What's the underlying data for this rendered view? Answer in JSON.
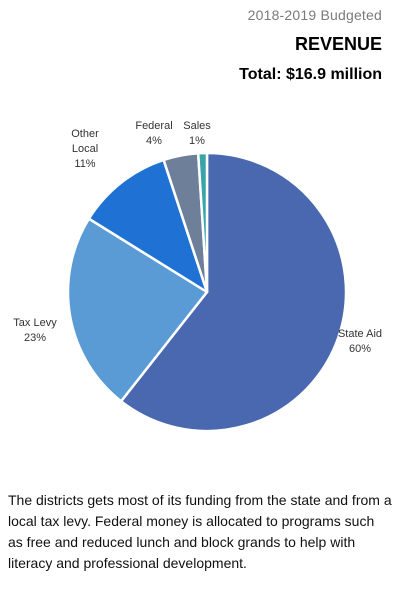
{
  "header": {
    "subtitle": "2018-2019 Budgeted",
    "title": "REVENUE",
    "total": "Total: $16.9 million"
  },
  "chart_data": {
    "type": "pie",
    "title": "REVENUE",
    "subtitle": "2018-2019 Budgeted",
    "slices": [
      {
        "name": "State Aid",
        "value": 60,
        "label_lines": [
          "State Aid",
          "60%"
        ],
        "color": "#4a68b0"
      },
      {
        "name": "Tax Levy",
        "value": 23,
        "label_lines": [
          "Tax Levy",
          "23%"
        ],
        "color": "#5b9bd5"
      },
      {
        "name": "Other Local",
        "value": 11,
        "label_lines": [
          "Other",
          "Local",
          "11%"
        ],
        "color": "#1f72d4"
      },
      {
        "name": "Federal",
        "value": 4,
        "label_lines": [
          "Federal",
          "4%"
        ],
        "color": "#6e7f99"
      },
      {
        "name": "Sales",
        "value": 1,
        "label_lines": [
          "Sales",
          "1%"
        ],
        "color": "#3aa4a8"
      }
    ]
  },
  "description": "The districts gets most of its funding from the state and from a local tax levy.  Federal money is allocated to programs such as free and reduced lunch and block grands to help with literacy and professional development."
}
